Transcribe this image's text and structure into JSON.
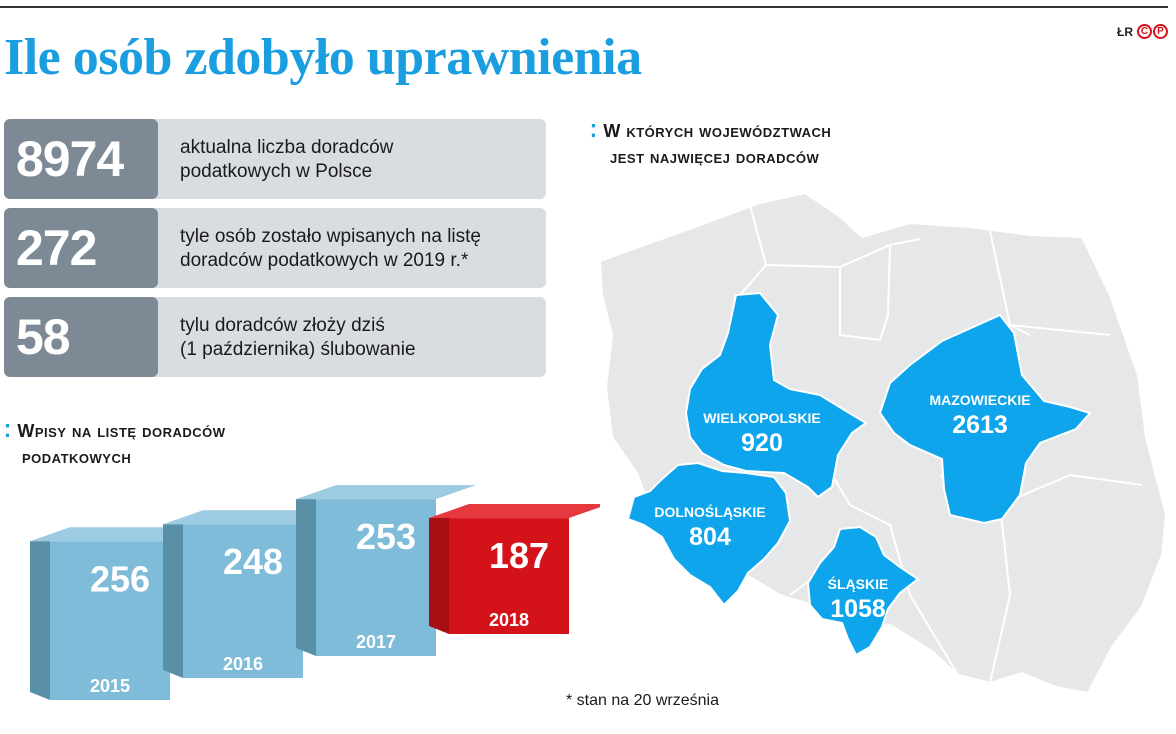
{
  "title": "Ile osób zdobyło uprawnienia",
  "credits": {
    "author": "ŁR",
    "logo_letters": [
      "C",
      "P"
    ]
  },
  "stats": [
    {
      "value": "8974",
      "line1": "aktualna liczba doradców",
      "line2": "podatkowych w Polsce"
    },
    {
      "value": "272",
      "line1": "tyle osób zostało wpisanych na listę",
      "line2": "doradców podatkowych w 2019 r.*"
    },
    {
      "value": "58",
      "line1": "tylu doradców złoży dziś",
      "line2": "(1 października) ślubowanie"
    }
  ],
  "bars_heading": {
    "line1": "Wpisy na listę doradców",
    "line2": "podatkowych"
  },
  "map_heading": {
    "line1": "W których województwach",
    "line2": "jest najwięcej doradców"
  },
  "footnote": "* stan na 20 września",
  "colors": {
    "accent": "#1a9ee0",
    "bar": "#7fbcd9",
    "bar_highlight": "#d4121a",
    "region_gray": "#e6e7e9",
    "region_highlight": "#0ea5ec",
    "num_box": "#7d8a96"
  },
  "chart_data": [
    {
      "type": "bar",
      "categories": [
        "2015",
        "2016",
        "2017",
        "2018"
      ],
      "values": [
        256,
        248,
        253,
        187
      ],
      "highlight": "2018"
    },
    {
      "type": "map",
      "regions": [
        {
          "name": "WIELKOPOLSKIE",
          "value": "920"
        },
        {
          "name": "MAZOWIECKIE",
          "value": "2613"
        },
        {
          "name": "DOLNOŚLĄSKIE",
          "value": "804"
        },
        {
          "name": "ŚLĄSKIE",
          "value": "1058"
        }
      ]
    }
  ]
}
